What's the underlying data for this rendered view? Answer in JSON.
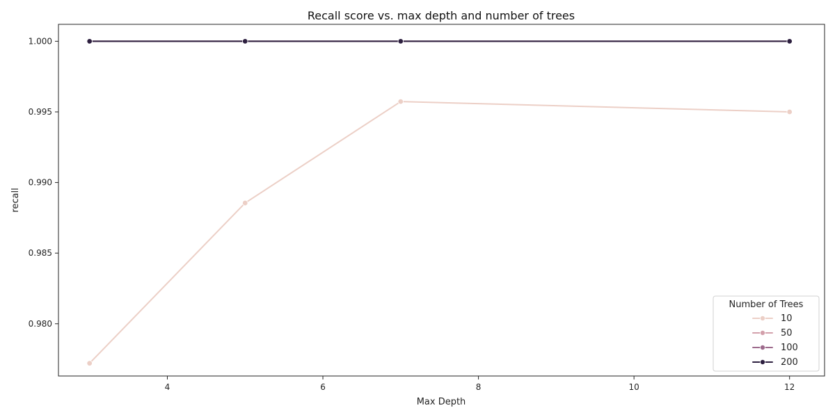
{
  "chart_data": {
    "type": "line",
    "title": "Recall score vs. max depth and number of trees",
    "xlabel": "Max Depth",
    "ylabel": "recall",
    "x": [
      3,
      5,
      7,
      12
    ],
    "xlim": [
      2.6,
      12.45
    ],
    "ylim": [
      0.9763,
      1.0012
    ],
    "xticks": [
      4,
      6,
      8,
      10,
      12
    ],
    "xtick_labels": [
      "4",
      "6",
      "8",
      "10",
      "12"
    ],
    "yticks": [
      0.98,
      0.985,
      0.99,
      0.995,
      1.0
    ],
    "ytick_labels": [
      "0.980",
      "0.985",
      "0.990",
      "0.995",
      "1.000"
    ],
    "grid": false,
    "legend": {
      "title": "Number of Trees",
      "placement": "bottom-right"
    },
    "series": [
      {
        "name": "10",
        "color": "#eccfc6",
        "values": [
          0.9772,
          0.98855,
          0.99573,
          0.995
        ]
      },
      {
        "name": "50",
        "color": "#d3a0ab",
        "values": [
          1.0,
          1.0,
          1.0,
          1.0
        ]
      },
      {
        "name": "100",
        "color": "#9d6a8c",
        "values": [
          1.0,
          1.0,
          1.0,
          1.0
        ]
      },
      {
        "name": "200",
        "color": "#2d1f3f",
        "values": [
          1.0,
          1.0,
          1.0,
          1.0
        ]
      }
    ]
  }
}
